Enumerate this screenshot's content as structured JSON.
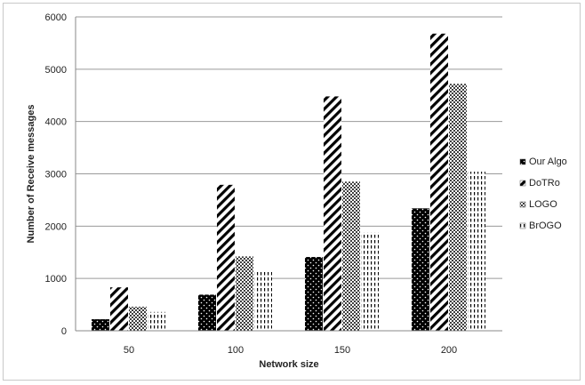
{
  "chart_data": {
    "type": "bar",
    "title": "",
    "xlabel": "Network size",
    "ylabel": "Number of Receive messages",
    "categories": [
      "50",
      "100",
      "150",
      "200"
    ],
    "ylim": [
      0,
      6000
    ],
    "yticks": [
      0,
      1000,
      2000,
      3000,
      4000,
      5000,
      6000
    ],
    "grid": true,
    "legend_position": "right",
    "series": [
      {
        "name": "Our Algo",
        "pattern": "dots-on-black",
        "values": [
          220,
          690,
          1410,
          2340
        ]
      },
      {
        "name": "DoTRo",
        "pattern": "diagonal-stripes",
        "values": [
          830,
          2790,
          4480,
          5680
        ]
      },
      {
        "name": "LOGO",
        "pattern": "dense-dots",
        "values": [
          460,
          1420,
          2850,
          4720
        ]
      },
      {
        "name": "BrOGO",
        "pattern": "vertical-dashes",
        "values": [
          360,
          1160,
          1880,
          3040
        ]
      }
    ]
  }
}
